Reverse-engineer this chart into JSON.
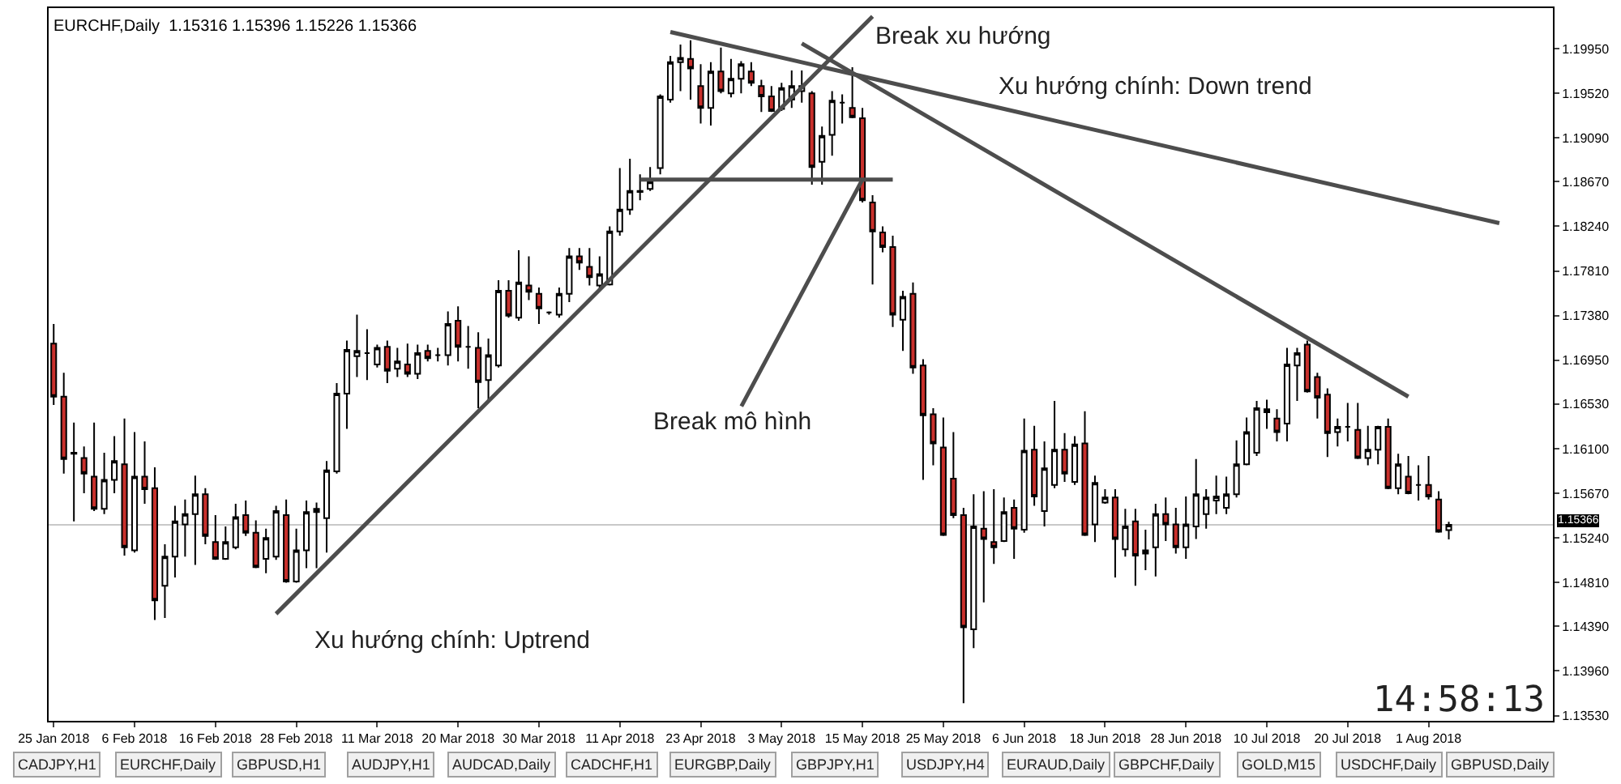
{
  "chart_data": {
    "type": "candlestick",
    "title": "EURCHF,Daily  1.15316 1.15396 1.15226 1.15366",
    "categories": [
      "25 Jan 2018",
      null,
      null,
      null,
      null,
      null,
      null,
      null,
      "6 Feb 2018",
      null,
      null,
      null,
      null,
      null,
      null,
      null,
      "16 Feb 2018",
      null,
      null,
      null,
      null,
      null,
      null,
      null,
      "28 Feb 2018",
      null,
      null,
      null,
      null,
      null,
      null,
      null,
      "11 Mar 2018",
      null,
      null,
      null,
      null,
      null,
      null,
      null,
      "20 Mar 2018",
      null,
      null,
      null,
      null,
      null,
      null,
      null,
      "30 Mar 2018",
      null,
      null,
      null,
      null,
      null,
      null,
      null,
      "11 Apr 2018",
      null,
      null,
      null,
      null,
      null,
      null,
      null,
      "23 Apr 2018",
      null,
      null,
      null,
      null,
      null,
      null,
      null,
      "3 May 2018",
      null,
      null,
      null,
      null,
      null,
      null,
      null,
      "15 May 2018",
      null,
      null,
      null,
      null,
      null,
      null,
      null,
      "25 May 2018",
      null,
      null,
      null,
      null,
      null,
      null,
      null,
      "6 Jun 2018",
      null,
      null,
      null,
      null,
      null,
      null,
      null,
      "18 Jun 2018",
      null,
      null,
      null,
      null,
      null,
      null,
      null,
      "28 Jun 2018",
      null,
      null,
      null,
      null,
      null,
      null,
      null,
      "10 Jul 2018",
      null,
      null,
      null,
      null,
      null,
      null,
      null,
      "20 Jul 2018",
      null,
      null,
      null,
      null,
      null,
      null,
      null,
      "1 Aug 2018",
      null,
      null,
      null,
      null,
      null,
      null,
      null
    ],
    "ohlc": [
      [
        1.1711,
        1.173,
        1.1652,
        1.166
      ],
      [
        1.166,
        1.1683,
        1.1586,
        1.16
      ],
      [
        1.1605,
        1.1635,
        1.154,
        1.1606
      ],
      [
        1.1601,
        1.1612,
        1.1567,
        1.1586
      ],
      [
        1.1583,
        1.1635,
        1.155,
        1.1552
      ],
      [
        1.1552,
        1.1606,
        1.1547,
        1.158
      ],
      [
        1.158,
        1.1622,
        1.1567,
        1.1598
      ],
      [
        1.1595,
        1.1639,
        1.1507,
        1.1515
      ],
      [
        1.1512,
        1.1626,
        1.151,
        1.1583
      ],
      [
        1.1583,
        1.1617,
        1.1557,
        1.1571
      ],
      [
        1.1572,
        1.1592,
        1.1445,
        1.1464
      ],
      [
        1.1478,
        1.1518,
        1.1447,
        1.1506
      ],
      [
        1.1506,
        1.1555,
        1.1486,
        1.154
      ],
      [
        1.1537,
        1.1561,
        1.1506,
        1.1547
      ],
      [
        1.1547,
        1.1584,
        1.1498,
        1.1566
      ],
      [
        1.1566,
        1.1572,
        1.1518,
        1.1526
      ],
      [
        1.152,
        1.1546,
        1.1503,
        1.1504
      ],
      [
        1.1504,
        1.1535,
        1.1503,
        1.152
      ],
      [
        1.1515,
        1.1557,
        1.1513,
        1.1544
      ],
      [
        1.1546,
        1.156,
        1.1526,
        1.1529
      ],
      [
        1.1529,
        1.1541,
        1.1495,
        1.1496
      ],
      [
        1.1504,
        1.1533,
        1.149,
        1.1524
      ],
      [
        1.1506,
        1.1555,
        1.1503,
        1.155
      ],
      [
        1.1546,
        1.1561,
        1.1481,
        1.1482
      ],
      [
        1.1482,
        1.1533,
        1.1481,
        1.1512
      ],
      [
        1.1512,
        1.156,
        1.1495,
        1.1549
      ],
      [
        1.1549,
        1.1558,
        1.1495,
        1.1552
      ],
      [
        1.1543,
        1.1598,
        1.151,
        1.1589
      ],
      [
        1.1588,
        1.1673,
        1.1586,
        1.1663
      ],
      [
        1.1663,
        1.1714,
        1.1629,
        1.1705
      ],
      [
        1.1699,
        1.1739,
        1.1679,
        1.1704
      ],
      [
        1.1702,
        1.1725,
        1.1676,
        1.1702
      ],
      [
        1.1691,
        1.171,
        1.1688,
        1.1707
      ],
      [
        1.1708,
        1.1714,
        1.1673,
        1.1685
      ],
      [
        1.1687,
        1.1707,
        1.1679,
        1.1694
      ],
      [
        1.1691,
        1.1711,
        1.1679,
        1.1682
      ],
      [
        1.1682,
        1.171,
        1.1677,
        1.1702
      ],
      [
        1.1704,
        1.171,
        1.1694,
        1.1697
      ],
      [
        1.17,
        1.1707,
        1.1694,
        1.17
      ],
      [
        1.17,
        1.1742,
        1.169,
        1.173
      ],
      [
        1.1733,
        1.1747,
        1.1694,
        1.1708
      ],
      [
        1.1708,
        1.1728,
        1.1687,
        1.1708
      ],
      [
        1.1707,
        1.1722,
        1.1649,
        1.1674
      ],
      [
        1.1676,
        1.1716,
        1.1657,
        1.17
      ],
      [
        1.169,
        1.1772,
        1.1688,
        1.1762
      ],
      [
        1.1762,
        1.1772,
        1.1736,
        1.1738
      ],
      [
        1.1736,
        1.1801,
        1.1733,
        1.177
      ],
      [
        1.1767,
        1.1795,
        1.1753,
        1.1761
      ],
      [
        1.1759,
        1.1765,
        1.173,
        1.1745
      ],
      [
        1.1741,
        1.1742,
        1.1739,
        1.1741
      ],
      [
        1.1739,
        1.1765,
        1.1736,
        1.1759
      ],
      [
        1.1759,
        1.1803,
        1.1751,
        1.1795
      ],
      [
        1.1795,
        1.1803,
        1.1782,
        1.1789
      ],
      [
        1.1785,
        1.1803,
        1.1767,
        1.1775
      ],
      [
        1.1767,
        1.1795,
        1.1764,
        1.1778
      ],
      [
        1.1768,
        1.1824,
        1.1767,
        1.1819
      ],
      [
        1.1819,
        1.188,
        1.1815,
        1.184
      ],
      [
        1.184,
        1.1889,
        1.1835,
        1.1858
      ],
      [
        1.1857,
        1.1874,
        1.1849,
        1.1858
      ],
      [
        1.186,
        1.1881,
        1.1858,
        1.1867
      ],
      [
        1.188,
        1.1951,
        1.1874,
        1.1949
      ],
      [
        1.1946,
        1.1988,
        1.1943,
        1.1982
      ],
      [
        1.1982,
        1.1999,
        1.1954,
        1.1986
      ],
      [
        1.1985,
        1.2003,
        1.1946,
        1.1976
      ],
      [
        1.1959,
        1.198,
        1.1923,
        1.1938
      ],
      [
        1.1938,
        1.1982,
        1.1921,
        1.1973
      ],
      [
        1.1973,
        1.1996,
        1.1952,
        1.1954
      ],
      [
        1.1952,
        1.1985,
        1.1948,
        1.1966
      ],
      [
        1.1966,
        1.1983,
        1.1952,
        1.198
      ],
      [
        1.1973,
        1.1982,
        1.1959,
        1.1962
      ],
      [
        1.1959,
        1.1965,
        1.1934,
        1.1949
      ],
      [
        1.1949,
        1.1959,
        1.1934,
        1.1935
      ],
      [
        1.1937,
        1.1962,
        1.1935,
        1.1957
      ],
      [
        1.1946,
        1.1974,
        1.1938,
        1.1959
      ],
      [
        1.1954,
        1.1974,
        1.1943,
        1.1959
      ],
      [
        1.1952,
        1.1954,
        1.1864,
        1.1881
      ],
      [
        1.1886,
        1.192,
        1.1864,
        1.1911
      ],
      [
        1.1912,
        1.1954,
        1.1892,
        1.1945
      ],
      [
        1.1943,
        1.1951,
        1.1923,
        1.1943
      ],
      [
        1.1938,
        1.1977,
        1.1928,
        1.1929
      ],
      [
        1.1928,
        1.1938,
        1.1847,
        1.1849
      ],
      [
        1.1847,
        1.1854,
        1.1768,
        1.1819
      ],
      [
        1.1818,
        1.1824,
        1.1799,
        1.1804
      ],
      [
        1.1804,
        1.1815,
        1.1727,
        1.1739
      ],
      [
        1.1734,
        1.1762,
        1.1704,
        1.1756
      ],
      [
        1.1759,
        1.177,
        1.1682,
        1.1688
      ],
      [
        1.169,
        1.1696,
        1.158,
        1.1642
      ],
      [
        1.1643,
        1.1649,
        1.1594,
        1.1615
      ],
      [
        1.1611,
        1.164,
        1.1526,
        1.1527
      ],
      [
        1.1581,
        1.1626,
        1.1543,
        1.1546
      ],
      [
        1.1546,
        1.1553,
        1.1365,
        1.1438
      ],
      [
        1.1436,
        1.1566,
        1.1418,
        1.1535
      ],
      [
        1.1533,
        1.1569,
        1.1462,
        1.1523
      ],
      [
        1.152,
        1.1571,
        1.1499,
        1.1515
      ],
      [
        1.1521,
        1.1563,
        1.152,
        1.1549
      ],
      [
        1.1553,
        1.1561,
        1.1504,
        1.1533
      ],
      [
        1.1532,
        1.1639,
        1.1529,
        1.1608
      ],
      [
        1.1609,
        1.1632,
        1.1555,
        1.1564
      ],
      [
        1.155,
        1.1617,
        1.1535,
        1.1591
      ],
      [
        1.1575,
        1.1656,
        1.1572,
        1.1609
      ],
      [
        1.1609,
        1.1625,
        1.1578,
        1.1586
      ],
      [
        1.1578,
        1.1622,
        1.1575,
        1.1614
      ],
      [
        1.1615,
        1.1646,
        1.1526,
        1.1527
      ],
      [
        1.1537,
        1.1584,
        1.152,
        1.1577
      ],
      [
        1.1558,
        1.1571,
        1.1557,
        1.1563
      ],
      [
        1.1563,
        1.1571,
        1.1486,
        1.1523
      ],
      [
        1.1513,
        1.1552,
        1.1506,
        1.1535
      ],
      [
        1.154,
        1.1552,
        1.1478,
        1.1507
      ],
      [
        1.1509,
        1.1532,
        1.1493,
        1.1512
      ],
      [
        1.1515,
        1.1557,
        1.1487,
        1.1547
      ],
      [
        1.1547,
        1.1563,
        1.1521,
        1.1537
      ],
      [
        1.1537,
        1.1553,
        1.1509,
        1.1515
      ],
      [
        1.1515,
        1.1564,
        1.1504,
        1.1537
      ],
      [
        1.1535,
        1.16,
        1.1523,
        1.1566
      ],
      [
        1.1547,
        1.1571,
        1.1533,
        1.1563
      ],
      [
        1.156,
        1.1584,
        1.1547,
        1.1564
      ],
      [
        1.1553,
        1.1583,
        1.1547,
        1.1566
      ],
      [
        1.1566,
        1.1618,
        1.1563,
        1.1595
      ],
      [
        1.1595,
        1.164,
        1.1594,
        1.1626
      ],
      [
        1.1606,
        1.1656,
        1.1603,
        1.1649
      ],
      [
        1.1648,
        1.1657,
        1.1629,
        1.1645
      ],
      [
        1.1639,
        1.1648,
        1.1617,
        1.1626
      ],
      [
        1.1634,
        1.1707,
        1.1617,
        1.1691
      ],
      [
        1.169,
        1.1707,
        1.1656,
        1.1702
      ],
      [
        1.171,
        1.1714,
        1.1664,
        1.1665
      ],
      [
        1.1679,
        1.1683,
        1.1639,
        1.1659
      ],
      [
        1.1662,
        1.1668,
        1.1602,
        1.1625
      ],
      [
        1.1626,
        1.1639,
        1.1612,
        1.1631
      ],
      [
        1.1631,
        1.1654,
        1.1617,
        1.1631
      ],
      [
        1.1628,
        1.1654,
        1.16,
        1.1601
      ],
      [
        1.1601,
        1.1632,
        1.1594,
        1.1609
      ],
      [
        1.1609,
        1.1632,
        1.1595,
        1.1631
      ],
      [
        1.1631,
        1.1639,
        1.1571,
        1.1572
      ],
      [
        1.1572,
        1.1605,
        1.1566,
        1.1595
      ],
      [
        1.1583,
        1.1603,
        1.1566,
        1.1567
      ],
      [
        1.1575,
        1.1594,
        1.156,
        1.1575
      ],
      [
        1.1575,
        1.1603,
        1.1561,
        1.1564
      ],
      [
        1.1561,
        1.1569,
        1.1529,
        1.153
      ],
      [
        1.15316,
        1.15396,
        1.15226,
        1.15366
      ],
      null,
      null,
      null,
      null,
      null
    ],
    "series": [
      {
        "type": "line",
        "color": "#4d4d4d",
        "values": [
          null,
          null,
          null,
          null,
          null,
          null,
          null,
          null,
          null,
          null,
          null,
          null,
          null,
          null,
          null,
          null,
          null,
          null,
          null,
          null,
          null,
          null,
          1.1451,
          null,
          null,
          null,
          null,
          null,
          null,
          null,
          null,
          null,
          null,
          null,
          null,
          null,
          null,
          null,
          null,
          null,
          null,
          null,
          null,
          null,
          null,
          null,
          null,
          null,
          null,
          null,
          null,
          null,
          null,
          null,
          null,
          null,
          null,
          null,
          null,
          null,
          null,
          null,
          null,
          null,
          null,
          null,
          null,
          null,
          null,
          null,
          null,
          null,
          null,
          null,
          null,
          null,
          null,
          null,
          null,
          null,
          null,
          1.2026,
          null,
          null,
          null,
          null,
          null,
          null,
          null,
          null,
          null,
          null,
          null,
          null,
          null,
          null,
          null,
          null,
          null,
          null,
          null,
          null,
          null,
          null,
          null,
          null,
          null,
          null,
          null,
          null,
          null,
          null,
          null,
          null,
          null,
          null,
          null,
          null,
          null,
          null,
          null,
          null,
          null,
          null,
          null,
          null,
          null,
          null,
          null,
          null,
          null,
          null,
          null,
          null,
          null,
          null,
          null,
          null,
          null,
          null,
          null,
          null,
          null,
          null
        ]
      },
      {
        "type": "line",
        "color": "#4d4d4d",
        "values": [
          null,
          null,
          null,
          null,
          null,
          null,
          null,
          null,
          null,
          null,
          null,
          null,
          null,
          null,
          null,
          null,
          null,
          null,
          null,
          null,
          null,
          null,
          null,
          null,
          null,
          null,
          null,
          null,
          null,
          null,
          null,
          null,
          null,
          null,
          null,
          null,
          null,
          null,
          null,
          null,
          null,
          null,
          null,
          null,
          null,
          null,
          null,
          null,
          null,
          null,
          null,
          null,
          null,
          null,
          null,
          null,
          null,
          null,
          null,
          null,
          null,
          1.2011,
          null,
          null,
          null,
          null,
          null,
          null,
          null,
          null,
          null,
          null,
          null,
          null,
          null,
          null,
          null,
          null,
          null,
          null,
          null,
          null,
          null,
          null,
          null,
          null,
          null,
          null,
          null,
          null,
          null,
          null,
          null,
          null,
          null,
          null,
          null,
          null,
          null,
          null,
          null,
          null,
          null,
          null,
          null,
          null,
          null,
          null,
          null,
          null,
          null,
          null,
          null,
          null,
          null,
          null,
          null,
          null,
          null,
          null,
          null,
          null,
          null,
          null,
          null,
          null,
          null,
          null,
          null,
          null,
          null,
          null,
          null,
          null,
          null,
          null,
          null,
          null,
          null,
          null,
          null,
          null,
          null,
          1.1827
        ]
      },
      {
        "type": "line",
        "color": "#4d4d4d",
        "values": [
          null,
          null,
          null,
          null,
          null,
          null,
          null,
          null,
          null,
          null,
          null,
          null,
          null,
          null,
          null,
          null,
          null,
          null,
          null,
          null,
          null,
          null,
          null,
          null,
          null,
          null,
          null,
          null,
          null,
          null,
          null,
          null,
          null,
          null,
          null,
          null,
          null,
          null,
          null,
          null,
          null,
          null,
          null,
          null,
          null,
          null,
          null,
          null,
          null,
          null,
          null,
          null,
          null,
          null,
          null,
          null,
          null,
          null,
          null,
          null,
          null,
          null,
          null,
          null,
          null,
          null,
          null,
          null,
          null,
          null,
          null,
          null,
          null,
          null,
          1.2,
          null,
          null,
          null,
          null,
          null,
          null,
          null,
          null,
          null,
          null,
          null,
          null,
          null,
          null,
          null,
          null,
          null,
          null,
          null,
          null,
          null,
          null,
          null,
          null,
          null,
          null,
          null,
          null,
          null,
          null,
          null,
          null,
          null,
          null,
          null,
          null,
          null,
          null,
          null,
          null,
          null,
          null,
          null,
          null,
          null,
          null,
          null,
          null,
          null,
          null,
          null,
          null,
          null,
          null,
          null,
          null,
          null,
          null,
          null,
          1.166,
          null,
          null,
          null,
          null,
          null,
          null,
          null,
          null,
          null
        ]
      },
      {
        "type": "line",
        "color": "#4d4d4d",
        "values": [
          null,
          null,
          null,
          null,
          null,
          null,
          null,
          null,
          null,
          null,
          null,
          null,
          null,
          null,
          null,
          null,
          null,
          null,
          null,
          null,
          null,
          null,
          null,
          null,
          null,
          null,
          null,
          null,
          null,
          null,
          null,
          null,
          null,
          null,
          null,
          null,
          null,
          null,
          null,
          null,
          null,
          null,
          null,
          null,
          null,
          null,
          null,
          null,
          null,
          null,
          null,
          null,
          null,
          null,
          null,
          null,
          null,
          null,
          1.1869,
          null,
          null,
          null,
          null,
          null,
          null,
          null,
          null,
          null,
          null,
          null,
          null,
          null,
          null,
          null,
          null,
          null,
          null,
          null,
          null,
          null,
          null,
          null,
          null,
          1.1869,
          null,
          null,
          null,
          null,
          null,
          null,
          null,
          null,
          null,
          null,
          null,
          null,
          null,
          null,
          null,
          null,
          null,
          null,
          null,
          null,
          null,
          null,
          null,
          null,
          null,
          null,
          null,
          null,
          null,
          null,
          null,
          null,
          null,
          null,
          null,
          null,
          null,
          null,
          null,
          null,
          null,
          null,
          null,
          null,
          null,
          null,
          null,
          null,
          null,
          null,
          null,
          null,
          null,
          null,
          null,
          null,
          null,
          null,
          null,
          null
        ]
      }
    ],
    "ref_lines": [
      {
        "axis": "y",
        "value": 1.15366,
        "label": "1.15366",
        "color": "#c8c8c8"
      }
    ],
    "annotations": [
      "Break xu hướng",
      "Xu hướng chính: Down trend",
      {
        "text": "Break mô hình",
        "x": "15 May 2018",
        "y": 1.1869
      },
      "Xu hướng chính: Uptrend",
      "14:58:13",
      "CADJPY,H1",
      "EURCHF,Daily",
      "GBPUSD,H1",
      "AUDJPY,H1",
      "AUDCAD,Daily",
      "CADCHF,H1",
      "EURGBP,Daily",
      "GBPJPY,H1",
      "USDJPY,H4",
      "EURAUD,Daily",
      "GBPCHF,Daily",
      "GOLD,M15",
      "USDCHF,Daily",
      "GBPUSD,Daily"
    ],
    "ylim": [
      1.1348,
      1.2034
    ],
    "yticks": [
      {
        "value": 1.1995,
        "label": "1.19950"
      },
      {
        "value": 1.1952,
        "label": "1.19520"
      },
      {
        "value": 1.1909,
        "label": "1.19090"
      },
      {
        "value": 1.1867,
        "label": "1.18670"
      },
      {
        "value": 1.1824,
        "label": "1.18240"
      },
      {
        "value": 1.1781,
        "label": "1.17810"
      },
      {
        "value": 1.1738,
        "label": "1.17380"
      },
      {
        "value": 1.1695,
        "label": "1.16950"
      },
      {
        "value": 1.1653,
        "label": "1.16530"
      },
      {
        "value": 1.161,
        "label": "1.16100"
      },
      {
        "value": 1.1567,
        "label": "1.15670"
      },
      {
        "value": 1.1524,
        "label": "1.15240"
      },
      {
        "value": 1.1481,
        "label": "1.14810"
      },
      {
        "value": 1.1439,
        "label": "1.14390"
      },
      {
        "value": 1.1396,
        "label": "1.13960"
      },
      {
        "value": 1.1353,
        "label": "1.13530"
      }
    ]
  }
}
